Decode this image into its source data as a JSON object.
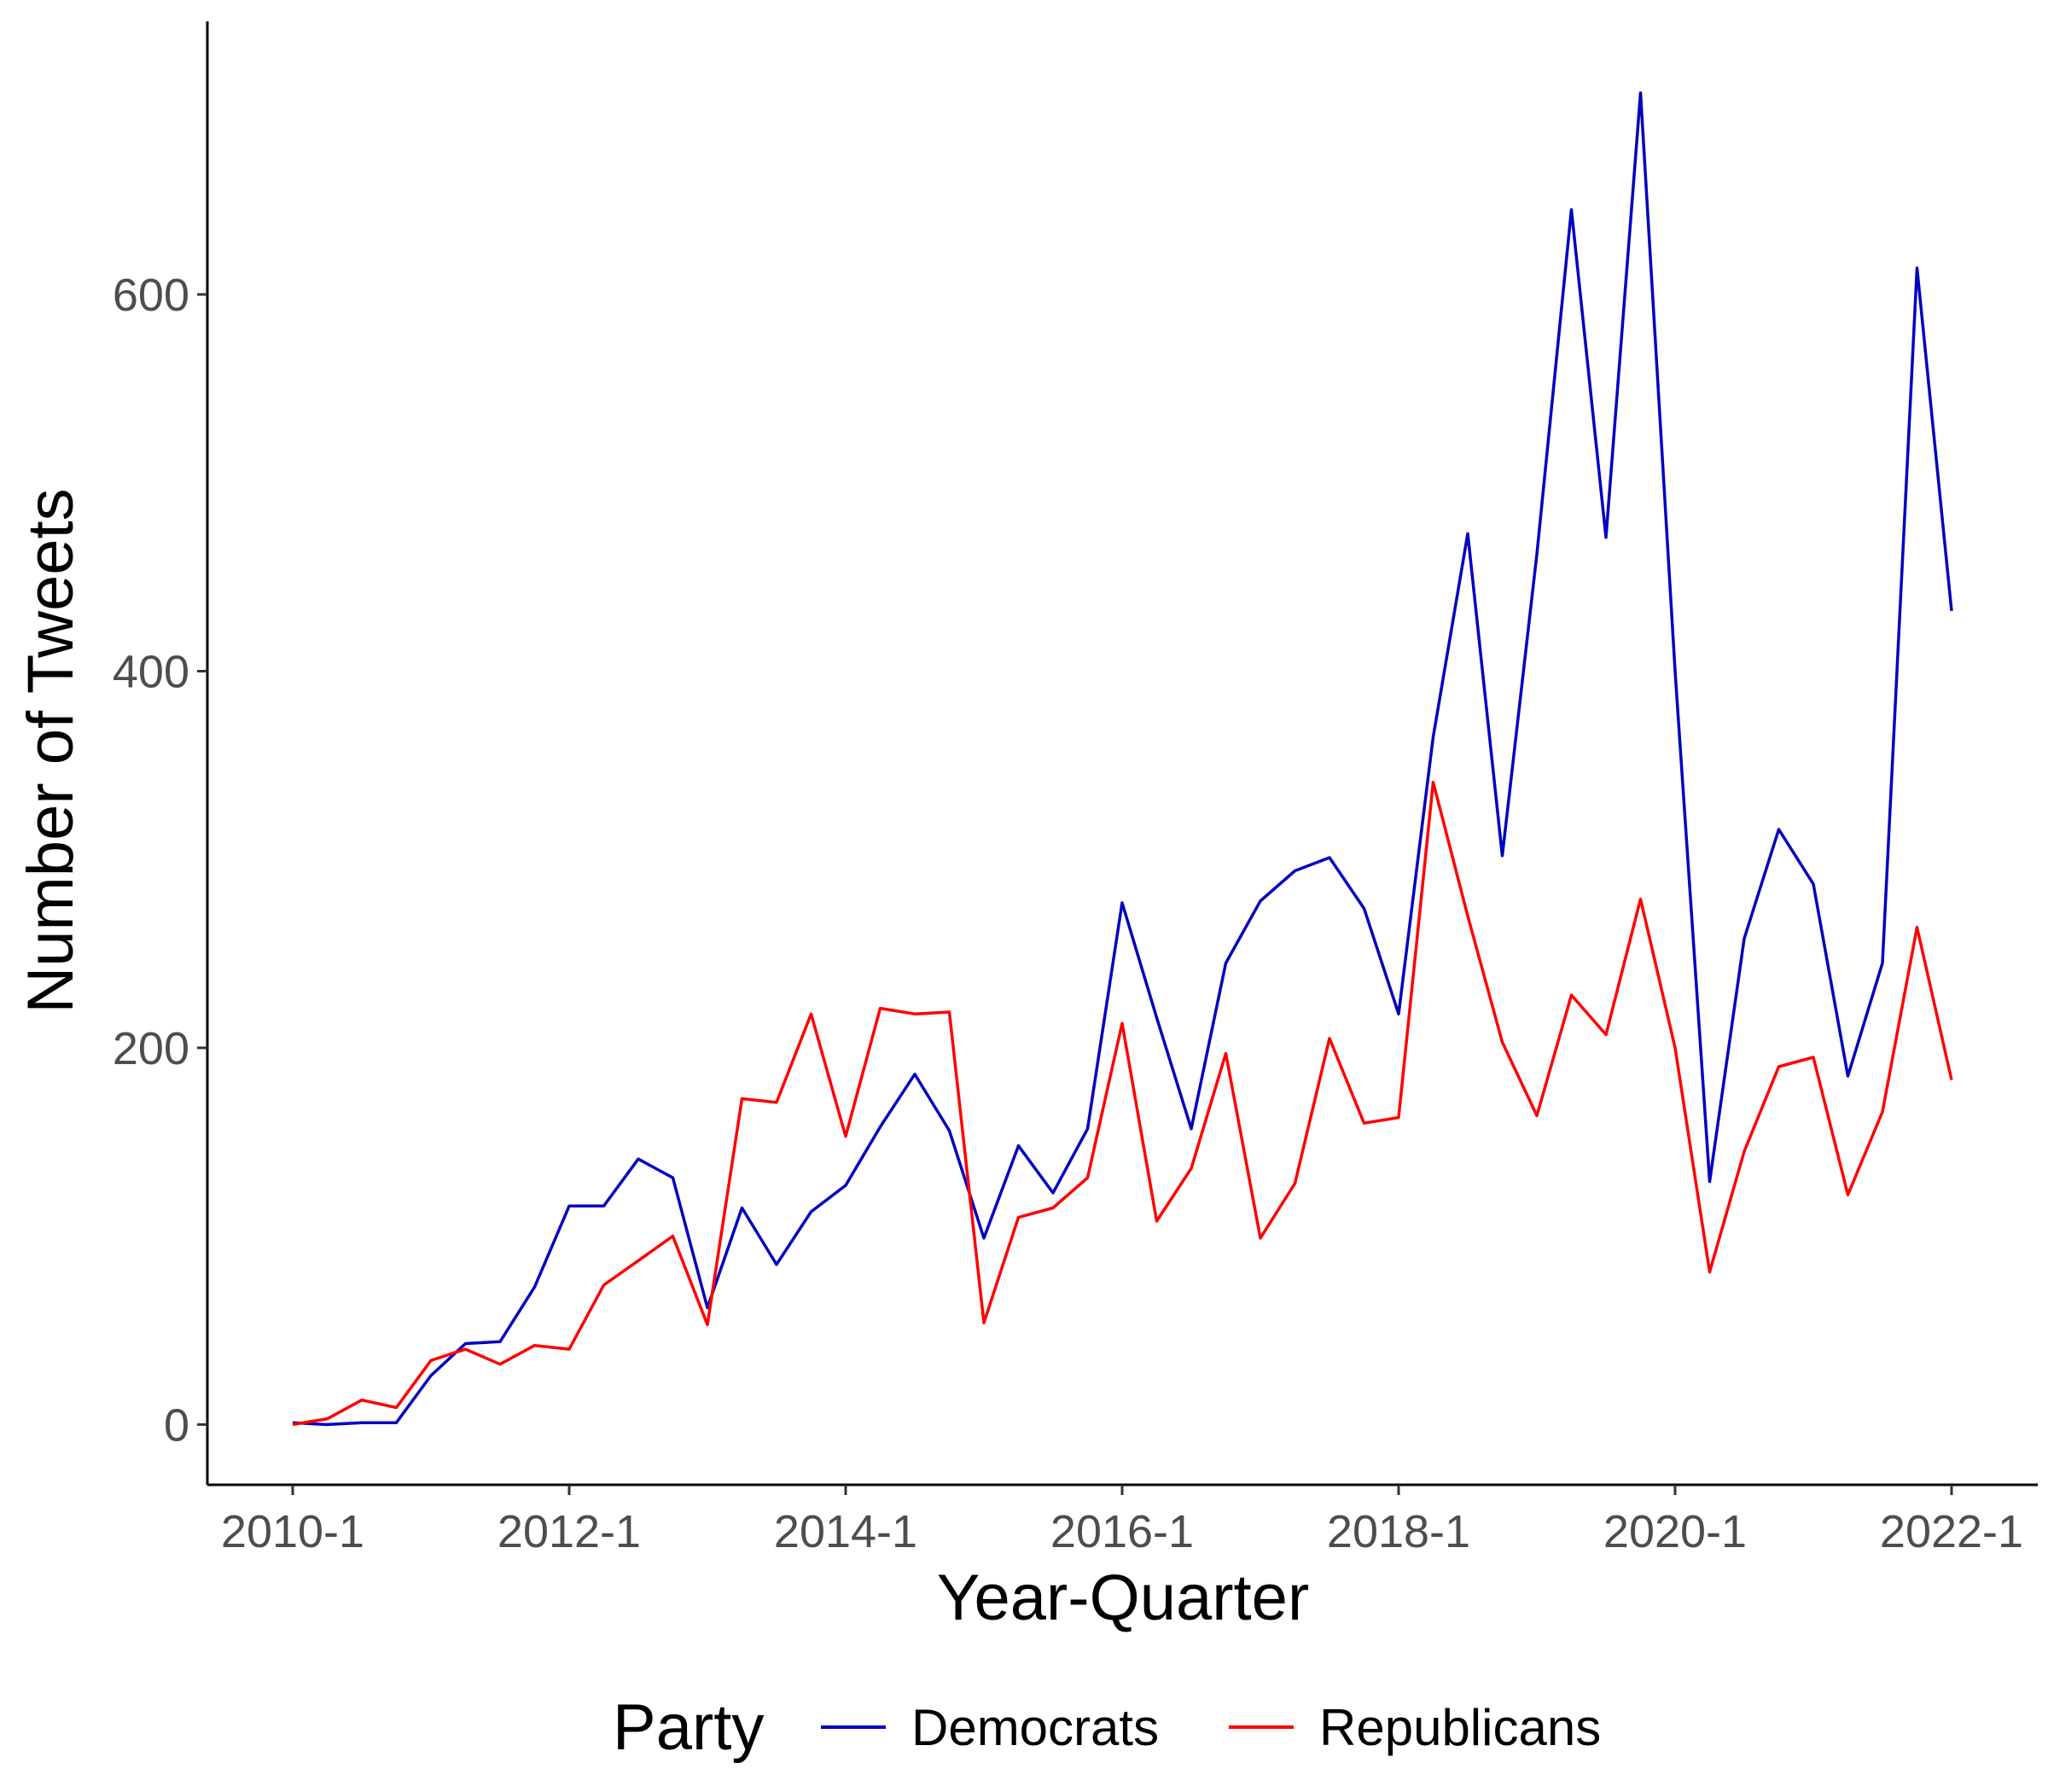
{
  "chart_data": {
    "type": "line",
    "title": "",
    "xlabel": "Year-Quarter",
    "ylabel": "Number of Tweets",
    "x_tick_labels": [
      "2010-1",
      "2012-1",
      "2014-1",
      "2016-1",
      "2018-1",
      "2020-1",
      "2022-1"
    ],
    "y_tick_labels": [
      "0",
      "200",
      "400",
      "600"
    ],
    "y_ticks": [
      0,
      200,
      400,
      600
    ],
    "ylim": [
      -32,
      745
    ],
    "grid": false,
    "legend": {
      "title": "Party",
      "position": "bottom"
    },
    "x": [
      "2010-1",
      "2010-2",
      "2010-3",
      "2010-4",
      "2011-1",
      "2011-2",
      "2011-3",
      "2011-4",
      "2012-1",
      "2012-2",
      "2012-3",
      "2012-4",
      "2013-1",
      "2013-2",
      "2013-3",
      "2013-4",
      "2014-1",
      "2014-2",
      "2014-3",
      "2014-4",
      "2015-1",
      "2015-2",
      "2015-3",
      "2015-4",
      "2016-1",
      "2016-2",
      "2016-3",
      "2016-4",
      "2017-1",
      "2017-2",
      "2017-3",
      "2017-4",
      "2018-1",
      "2018-2",
      "2018-3",
      "2018-4",
      "2019-1",
      "2019-2",
      "2019-3",
      "2019-4",
      "2020-1",
      "2020-2",
      "2020-3",
      "2020-4",
      "2021-1",
      "2021-2",
      "2021-3",
      "2021-4",
      "2022-1"
    ],
    "series": [
      {
        "name": "Democrats",
        "color": "#0000c0",
        "values": [
          1,
          0,
          1,
          1,
          26,
          43,
          44,
          73,
          116,
          116,
          141,
          131,
          62,
          115,
          85,
          113,
          127,
          158,
          186,
          156,
          99,
          148,
          123,
          157,
          277,
          216,
          157,
          245,
          278,
          294,
          301,
          274,
          218,
          365,
          473,
          302,
          462,
          645,
          471,
          707,
          400,
          129,
          258,
          316,
          287,
          185,
          245,
          614,
          432
        ]
      },
      {
        "name": "Republicans",
        "color": "#ff0000",
        "values": [
          0,
          3,
          13,
          9,
          34,
          40,
          32,
          42,
          40,
          74,
          87,
          100,
          53,
          173,
          171,
          218,
          153,
          221,
          218,
          219,
          54,
          110,
          115,
          131,
          213,
          108,
          136,
          197,
          99,
          128,
          205,
          160,
          163,
          341,
          270,
          203,
          164,
          228,
          207,
          279,
          200,
          81,
          145,
          190,
          195,
          122,
          166,
          264,
          183
        ]
      }
    ]
  }
}
